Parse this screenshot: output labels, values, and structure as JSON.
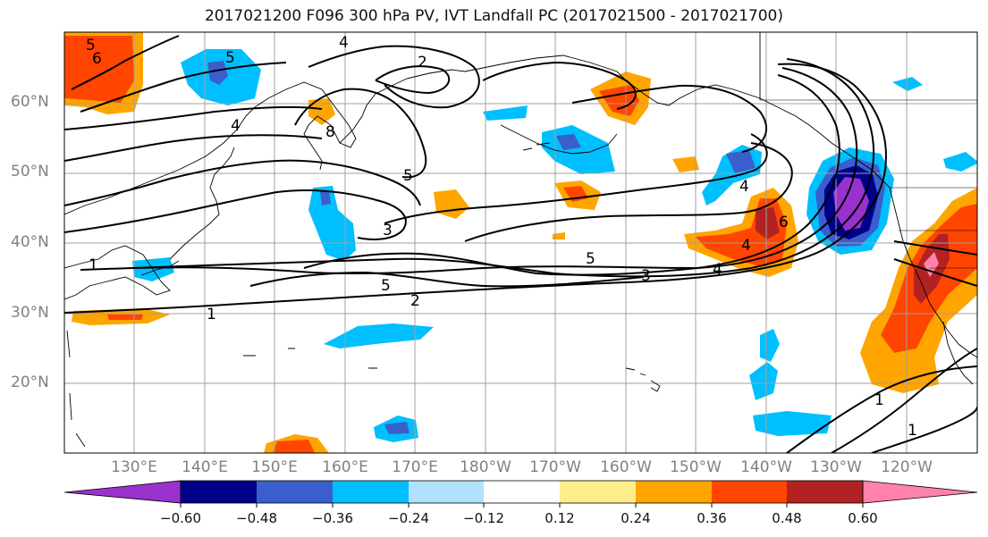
{
  "title": "2017021200 F096 300 hPa PV, IVT Landfall PC (2017021500 - 2017021700)",
  "map": {
    "lat_labels": [
      "60°N",
      "50°N",
      "40°N",
      "30°N",
      "20°N"
    ],
    "lon_labels": [
      "130°E",
      "140°E",
      "150°E",
      "160°E",
      "170°E",
      "180°W",
      "170°W",
      "160°W",
      "150°W",
      "140°W",
      "130°W",
      "120°W"
    ],
    "contour_labels": [
      "5",
      "6",
      "4",
      "2",
      "4",
      "8",
      "5",
      "3",
      "5",
      "2",
      "1",
      "1",
      "5",
      "4",
      "4",
      "3",
      "4",
      "6",
      "1",
      "1",
      "5"
    ],
    "colors": {
      "land_line": "#000000",
      "grid": "#a0a0a0",
      "contour": "#000000"
    }
  },
  "colorbar": {
    "colors": [
      "#9932cc",
      "#00008b",
      "#3a5fcd",
      "#00bfff",
      "#b0e2ff",
      "#ffffff",
      "#ffec8b",
      "#ffa500",
      "#ff4500",
      "#b22222",
      "#ff82ab"
    ],
    "tick_labels": [
      "−0.60",
      "−0.48",
      "−0.36",
      "−0.24",
      "−0.12",
      "0.12",
      "0.24",
      "0.36",
      "0.48",
      "0.60"
    ]
  }
}
